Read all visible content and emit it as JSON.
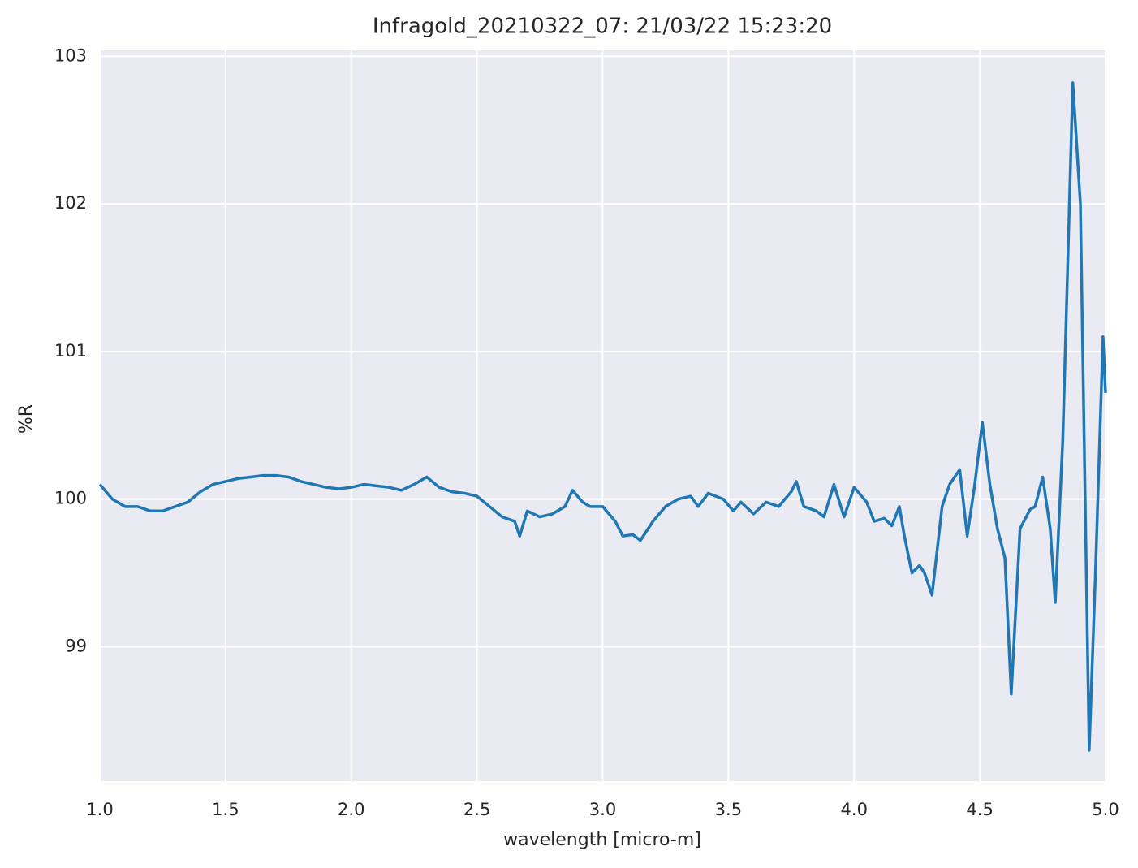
{
  "chart_data": {
    "type": "line",
    "title": "Infragold_20210322_07:  21/03/22 15:23:20",
    "xlabel": "wavelength [micro-m]",
    "ylabel": "%R",
    "xlim": [
      1,
      5
    ],
    "ylim": [
      98.09,
      103.04
    ],
    "xticks": [
      {
        "value": 1,
        "label": "1.0"
      },
      1.5,
      {
        "value": 2,
        "label": "2.0"
      },
      2.5,
      {
        "value": 3,
        "label": "3.0"
      },
      3.5,
      {
        "value": 4,
        "label": "4.0"
      },
      4.5,
      {
        "value": 5,
        "label": "5.0"
      }
    ],
    "yticks": [
      99,
      100,
      101,
      102,
      103
    ],
    "grid": true,
    "x": [
      1.0,
      1.05,
      1.1,
      1.15,
      1.2,
      1.25,
      1.3,
      1.35,
      1.4,
      1.45,
      1.5,
      1.55,
      1.6,
      1.65,
      1.7,
      1.75,
      1.8,
      1.85,
      1.9,
      1.95,
      2.0,
      2.05,
      2.1,
      2.15,
      2.2,
      2.25,
      2.3,
      2.35,
      2.4,
      2.45,
      2.5,
      2.55,
      2.6,
      2.65,
      2.67,
      2.7,
      2.75,
      2.8,
      2.85,
      2.88,
      2.92,
      2.95,
      3.0,
      3.05,
      3.08,
      3.12,
      3.15,
      3.2,
      3.25,
      3.3,
      3.35,
      3.38,
      3.42,
      3.48,
      3.52,
      3.55,
      3.6,
      3.65,
      3.7,
      3.75,
      3.77,
      3.8,
      3.85,
      3.88,
      3.92,
      3.96,
      4.0,
      4.05,
      4.08,
      4.12,
      4.15,
      4.18,
      4.2,
      4.23,
      4.26,
      4.28,
      4.31,
      4.35,
      4.38,
      4.42,
      4.45,
      4.48,
      4.51,
      4.54,
      4.57,
      4.6,
      4.625,
      4.66,
      4.7,
      4.72,
      4.75,
      4.78,
      4.8,
      4.83,
      4.87,
      4.9,
      4.935,
      4.96,
      4.99,
      5.0
    ],
    "series": [
      {
        "color": "#1f77b4",
        "values": [
          100.1,
          100.0,
          99.95,
          99.95,
          99.92,
          99.92,
          99.95,
          99.98,
          100.05,
          100.1,
          100.12,
          100.14,
          100.15,
          100.16,
          100.16,
          100.15,
          100.12,
          100.1,
          100.08,
          100.07,
          100.08,
          100.1,
          100.09,
          100.08,
          100.06,
          100.1,
          100.15,
          100.08,
          100.05,
          100.04,
          100.02,
          99.95,
          99.88,
          99.85,
          99.75,
          99.92,
          99.88,
          99.9,
          99.95,
          100.06,
          99.98,
          99.95,
          99.95,
          99.85,
          99.75,
          99.76,
          99.72,
          99.85,
          99.95,
          100.0,
          100.02,
          99.95,
          100.04,
          100.0,
          99.92,
          99.98,
          99.9,
          99.98,
          99.95,
          100.05,
          100.12,
          99.95,
          99.92,
          99.88,
          100.1,
          99.88,
          100.08,
          99.98,
          99.85,
          99.87,
          99.82,
          99.95,
          99.75,
          99.5,
          99.55,
          99.5,
          99.35,
          99.95,
          100.1,
          100.2,
          99.75,
          100.1,
          100.52,
          100.1,
          99.8,
          99.6,
          98.68,
          99.8,
          99.93,
          99.95,
          100.15,
          99.8,
          99.3,
          100.4,
          102.82,
          102.0,
          98.3,
          99.5,
          101.1,
          100.72
        ]
      }
    ]
  }
}
